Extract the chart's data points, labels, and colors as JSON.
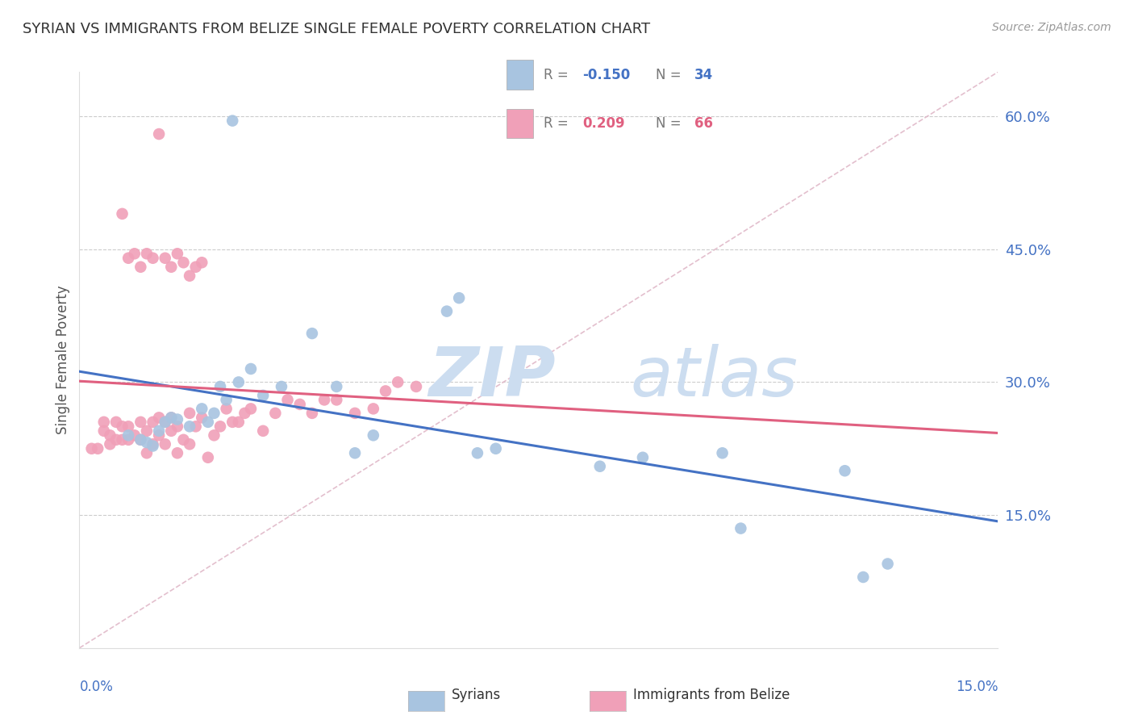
{
  "title": "SYRIAN VS IMMIGRANTS FROM BELIZE SINGLE FEMALE POVERTY CORRELATION CHART",
  "source": "Source: ZipAtlas.com",
  "ylabel": "Single Female Poverty",
  "ylabel_right_ticks": [
    "60.0%",
    "45.0%",
    "30.0%",
    "15.0%"
  ],
  "ylabel_right_vals": [
    0.6,
    0.45,
    0.3,
    0.15
  ],
  "x_min": 0.0,
  "x_max": 0.15,
  "y_min": 0.0,
  "y_max": 0.65,
  "blue_color": "#a8c4e0",
  "pink_color": "#f0a0b8",
  "blue_line_color": "#4472c4",
  "pink_line_color": "#e06080",
  "diag_line_color": "#e0b8c8",
  "watermark_zip": "ZIP",
  "watermark_atlas": "atlas",
  "watermark_color": "#ccddf0",
  "syrians_x": [
    0.025,
    0.008,
    0.01,
    0.011,
    0.012,
    0.013,
    0.014,
    0.015,
    0.016,
    0.018,
    0.02,
    0.021,
    0.022,
    0.023,
    0.024,
    0.026,
    0.028,
    0.03,
    0.033,
    0.038,
    0.042,
    0.045,
    0.048,
    0.06,
    0.062,
    0.065,
    0.068,
    0.085,
    0.092,
    0.105,
    0.108,
    0.125,
    0.128,
    0.132
  ],
  "syrians_y": [
    0.595,
    0.24,
    0.235,
    0.232,
    0.228,
    0.245,
    0.255,
    0.26,
    0.258,
    0.25,
    0.27,
    0.255,
    0.265,
    0.295,
    0.28,
    0.3,
    0.315,
    0.285,
    0.295,
    0.355,
    0.295,
    0.22,
    0.24,
    0.38,
    0.395,
    0.22,
    0.225,
    0.205,
    0.215,
    0.22,
    0.135,
    0.2,
    0.08,
    0.095
  ],
  "belize_x": [
    0.002,
    0.003,
    0.004,
    0.004,
    0.005,
    0.005,
    0.006,
    0.006,
    0.007,
    0.007,
    0.008,
    0.008,
    0.009,
    0.01,
    0.01,
    0.011,
    0.011,
    0.012,
    0.012,
    0.013,
    0.013,
    0.014,
    0.014,
    0.015,
    0.015,
    0.016,
    0.016,
    0.017,
    0.018,
    0.018,
    0.019,
    0.02,
    0.021,
    0.022,
    0.023,
    0.024,
    0.025,
    0.026,
    0.027,
    0.028,
    0.03,
    0.032,
    0.034,
    0.036,
    0.038,
    0.04,
    0.042,
    0.045,
    0.048,
    0.05,
    0.052,
    0.055,
    0.013,
    0.007,
    0.008,
    0.009,
    0.01,
    0.011,
    0.012,
    0.014,
    0.015,
    0.016,
    0.017,
    0.018,
    0.019,
    0.02
  ],
  "belize_y": [
    0.225,
    0.225,
    0.245,
    0.255,
    0.23,
    0.24,
    0.235,
    0.255,
    0.235,
    0.25,
    0.235,
    0.25,
    0.24,
    0.235,
    0.255,
    0.22,
    0.245,
    0.23,
    0.255,
    0.24,
    0.26,
    0.23,
    0.255,
    0.245,
    0.26,
    0.22,
    0.25,
    0.235,
    0.265,
    0.23,
    0.25,
    0.26,
    0.215,
    0.24,
    0.25,
    0.27,
    0.255,
    0.255,
    0.265,
    0.27,
    0.245,
    0.265,
    0.28,
    0.275,
    0.265,
    0.28,
    0.28,
    0.265,
    0.27,
    0.29,
    0.3,
    0.295,
    0.58,
    0.49,
    0.44,
    0.445,
    0.43,
    0.445,
    0.44,
    0.44,
    0.43,
    0.445,
    0.435,
    0.42,
    0.43,
    0.435
  ]
}
